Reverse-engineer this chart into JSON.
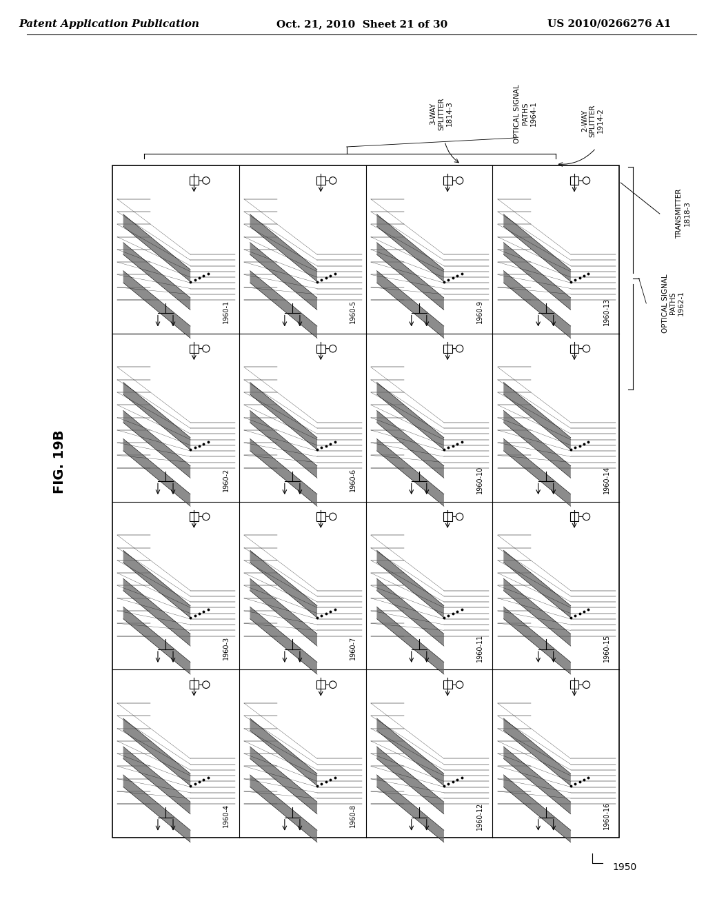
{
  "page_header_left": "Patent Application Publication",
  "page_header_center": "Oct. 21, 2010  Sheet 21 of 30",
  "page_header_right": "US 2010/0266276 A1",
  "fig_label": "FIG. 19B",
  "reference_number": "1950",
  "grid_cols": 4,
  "grid_rows": 4,
  "cell_labels": [
    [
      "1960-13",
      "1960-9",
      "1960-5",
      "1960-1"
    ],
    [
      "1960-14",
      "1960-10",
      "1960-6",
      "1960-2"
    ],
    [
      "1960-15",
      "1960-11",
      "1960-7",
      "1960-3"
    ],
    [
      "1960-16",
      "1960-12",
      "1960-8",
      "1960-4"
    ]
  ],
  "bg_color": "#ffffff",
  "line_color": "#000000",
  "text_color": "#000000",
  "header_font_size": 11,
  "label_font_size": 7.0,
  "annotation_font_size": 7.5,
  "fig_label_font_size": 14
}
